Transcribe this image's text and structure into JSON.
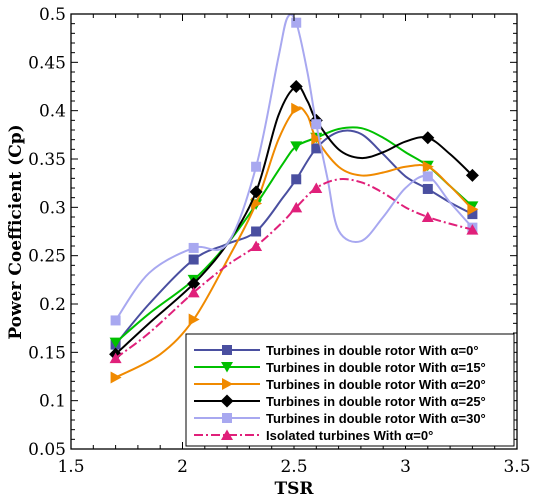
{
  "chart_data": {
    "type": "line",
    "xlabel": "TSR",
    "ylabel": "Power Coefficient (Cp)",
    "xlim": [
      1.5,
      3.5
    ],
    "ylim": [
      0.05,
      0.5
    ],
    "xticks": [
      1.5,
      2,
      2.5,
      3,
      3.5
    ],
    "xtick_labels": [
      "1.5",
      "2",
      "2.5",
      "3",
      "3.5"
    ],
    "yticks": [
      0.05,
      0.1,
      0.15,
      0.2,
      0.25,
      0.3,
      0.35,
      0.4,
      0.45,
      0.5
    ],
    "ytick_labels": [
      "0.05",
      "0.1",
      "0.15",
      "0.2",
      "0.25",
      "0.3",
      "0.35",
      "0.4",
      "0.45",
      "0.5"
    ],
    "grid": false,
    "legend_position": "bottom-right",
    "series": [
      {
        "name": "Turbines in double rotor With α=0°",
        "color": "#4a4fa0",
        "marker": "square",
        "line_style": "solid",
        "x": [
          1.7,
          2.05,
          2.33,
          2.51,
          2.6,
          3.1,
          3.3
        ],
        "y": [
          0.158,
          0.246,
          0.275,
          0.329,
          0.361,
          0.319,
          0.293
        ],
        "curve": [
          [
            1.7,
            0.158
          ],
          [
            1.85,
            0.2
          ],
          [
            2.05,
            0.246
          ],
          [
            2.2,
            0.262
          ],
          [
            2.33,
            0.275
          ],
          [
            2.45,
            0.31
          ],
          [
            2.51,
            0.329
          ],
          [
            2.6,
            0.361
          ],
          [
            2.7,
            0.378
          ],
          [
            2.8,
            0.376
          ],
          [
            2.9,
            0.355
          ],
          [
            3.0,
            0.332
          ],
          [
            3.1,
            0.319
          ],
          [
            3.2,
            0.305
          ],
          [
            3.3,
            0.293
          ]
        ]
      },
      {
        "name": "Turbines in double rotor With α=15°",
        "color": "#00c000",
        "marker": "triangle-down",
        "line_style": "solid",
        "x": [
          1.7,
          2.05,
          2.33,
          2.51,
          2.6,
          3.1,
          3.3
        ],
        "y": [
          0.16,
          0.225,
          0.303,
          0.363,
          0.372,
          0.343,
          0.301
        ],
        "curve": [
          [
            1.7,
            0.16
          ],
          [
            1.85,
            0.19
          ],
          [
            2.05,
            0.225
          ],
          [
            2.2,
            0.262
          ],
          [
            2.33,
            0.303
          ],
          [
            2.45,
            0.345
          ],
          [
            2.51,
            0.363
          ],
          [
            2.6,
            0.372
          ],
          [
            2.7,
            0.381
          ],
          [
            2.8,
            0.382
          ],
          [
            2.9,
            0.372
          ],
          [
            3.0,
            0.357
          ],
          [
            3.1,
            0.343
          ],
          [
            3.2,
            0.322
          ],
          [
            3.3,
            0.301
          ]
        ]
      },
      {
        "name": "Turbines in double rotor With α=20°",
        "color": "#f08a00",
        "marker": "triangle-right",
        "line_style": "solid",
        "x": [
          1.7,
          2.05,
          2.33,
          2.51,
          2.6,
          3.1,
          3.3
        ],
        "y": [
          0.124,
          0.184,
          0.304,
          0.402,
          0.371,
          0.342,
          0.298
        ],
        "curve": [
          [
            1.7,
            0.124
          ],
          [
            1.9,
            0.148
          ],
          [
            2.05,
            0.184
          ],
          [
            2.2,
            0.245
          ],
          [
            2.33,
            0.304
          ],
          [
            2.43,
            0.37
          ],
          [
            2.51,
            0.402
          ],
          [
            2.56,
            0.395
          ],
          [
            2.6,
            0.371
          ],
          [
            2.7,
            0.342
          ],
          [
            2.8,
            0.333
          ],
          [
            2.9,
            0.336
          ],
          [
            3.0,
            0.342
          ],
          [
            3.1,
            0.342
          ],
          [
            3.2,
            0.322
          ],
          [
            3.3,
            0.298
          ]
        ]
      },
      {
        "name": "Turbines in double rotor With α=25°",
        "color": "#000000",
        "marker": "diamond",
        "line_style": "solid",
        "x": [
          1.7,
          2.05,
          2.33,
          2.51,
          2.6,
          3.1,
          3.3
        ],
        "y": [
          0.148,
          0.221,
          0.316,
          0.425,
          0.39,
          0.372,
          0.333
        ],
        "curve": [
          [
            1.7,
            0.148
          ],
          [
            1.85,
            0.18
          ],
          [
            2.05,
            0.221
          ],
          [
            2.2,
            0.262
          ],
          [
            2.33,
            0.316
          ],
          [
            2.43,
            0.395
          ],
          [
            2.51,
            0.425
          ],
          [
            2.56,
            0.41
          ],
          [
            2.6,
            0.39
          ],
          [
            2.7,
            0.36
          ],
          [
            2.8,
            0.351
          ],
          [
            2.9,
            0.357
          ],
          [
            3.0,
            0.368
          ],
          [
            3.1,
            0.372
          ],
          [
            3.2,
            0.355
          ],
          [
            3.3,
            0.333
          ]
        ]
      },
      {
        "name": "Turbines in double rotor With α=30°",
        "color": "#a8a8f0",
        "marker": "square",
        "line_style": "solid",
        "x": [
          1.7,
          2.05,
          2.33,
          2.51,
          2.6,
          3.1,
          3.3
        ],
        "y": [
          0.183,
          0.258,
          0.342,
          0.491,
          0.386,
          0.332,
          0.279
        ],
        "curve": [
          [
            1.7,
            0.183
          ],
          [
            1.85,
            0.232
          ],
          [
            2.05,
            0.258
          ],
          [
            2.2,
            0.262
          ],
          [
            2.33,
            0.342
          ],
          [
            2.43,
            0.455
          ],
          [
            2.47,
            0.496
          ],
          [
            2.51,
            0.491
          ],
          [
            2.56,
            0.44
          ],
          [
            2.6,
            0.386
          ],
          [
            2.65,
            0.33
          ],
          [
            2.7,
            0.276
          ],
          [
            2.8,
            0.265
          ],
          [
            2.9,
            0.29
          ],
          [
            3.0,
            0.32
          ],
          [
            3.1,
            0.332
          ],
          [
            3.2,
            0.305
          ],
          [
            3.3,
            0.279
          ]
        ]
      },
      {
        "name": "Isolated turbines With α=0°",
        "color": "#e0207a",
        "marker": "triangle-up",
        "line_style": "dashdot",
        "x": [
          1.7,
          2.05,
          2.33,
          2.51,
          2.6,
          3.1,
          3.3
        ],
        "y": [
          0.144,
          0.212,
          0.26,
          0.3,
          0.32,
          0.29,
          0.277
        ],
        "curve": [
          [
            1.7,
            0.144
          ],
          [
            1.85,
            0.17
          ],
          [
            2.05,
            0.212
          ],
          [
            2.2,
            0.24
          ],
          [
            2.33,
            0.26
          ],
          [
            2.45,
            0.285
          ],
          [
            2.51,
            0.3
          ],
          [
            2.6,
            0.32
          ],
          [
            2.7,
            0.329
          ],
          [
            2.8,
            0.326
          ],
          [
            2.9,
            0.315
          ],
          [
            3.0,
            0.3
          ],
          [
            3.1,
            0.29
          ],
          [
            3.2,
            0.283
          ],
          [
            3.3,
            0.277
          ]
        ]
      }
    ]
  }
}
